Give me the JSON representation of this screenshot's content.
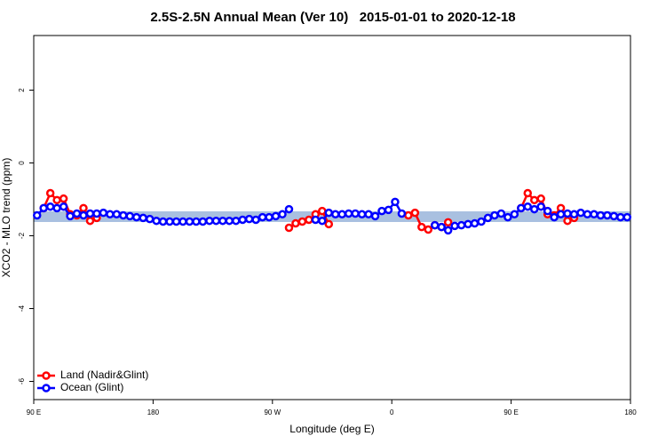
{
  "chart_data": {
    "type": "line",
    "title": "2.5S-2.5N Annual Mean (Ver 10)   2015-01-01 to 2020-12-18",
    "x_label": "Longitude (deg E)",
    "y_label": "XCO2 - MLO trend (ppm)",
    "xlim": [
      90,
      540
    ],
    "ylim": [
      -6.5,
      3.5
    ],
    "xticks": [
      {
        "value": 90,
        "label": "90 E"
      },
      180,
      {
        "value": 270,
        "label": "90 W"
      },
      {
        "value": 360,
        "label": "0"
      },
      {
        "value": 450,
        "label": "90 E"
      },
      {
        "value": 540,
        "label": "180"
      }
    ],
    "yticks": [
      -6,
      -4,
      -2,
      0,
      2
    ],
    "legend": "bottom-left",
    "x": [
      92.5,
      97.5,
      102.5,
      107.5,
      112.5,
      117.5,
      122.5,
      127.5,
      132.5,
      137.5,
      142.5,
      147.5,
      152.5,
      157.5,
      162.5,
      167.5,
      172.5,
      177.5,
      182.5,
      187.5,
      192.5,
      197.5,
      202.5,
      207.5,
      212.5,
      217.5,
      222.5,
      227.5,
      232.5,
      237.5,
      242.5,
      247.5,
      252.5,
      257.5,
      262.5,
      267.5,
      272.5,
      277.5,
      282.5,
      287.5,
      292.5,
      297.5,
      302.5,
      307.5,
      312.5,
      317.5,
      322.5,
      327.5,
      332.5,
      337.5,
      342.5,
      347.5,
      352.5,
      357.5,
      362.5,
      367.5,
      372.5,
      377.5,
      382.5,
      387.5,
      392.5,
      397.5,
      402.5,
      407.5,
      412.5,
      417.5,
      422.5,
      427.5,
      432.5,
      437.5,
      442.5,
      447.5,
      452.5,
      457.5,
      462.5,
      467.5,
      472.5,
      477.5,
      482.5,
      487.5,
      492.5,
      497.5,
      502.5,
      507.5,
      512.5,
      517.5,
      522.5,
      527.5,
      532.5,
      537.5
    ],
    "series": [
      {
        "name": "Land (Nadir&Glint)",
        "color": "#ff0000",
        "values": [
          null,
          -1.24,
          -0.83,
          -1.02,
          -0.98,
          -1.41,
          -1.44,
          -1.24,
          -1.59,
          -1.51,
          null,
          null,
          null,
          null,
          null,
          null,
          null,
          null,
          null,
          null,
          null,
          null,
          null,
          null,
          null,
          null,
          null,
          null,
          null,
          null,
          null,
          null,
          null,
          null,
          null,
          null,
          null,
          null,
          -1.78,
          -1.66,
          -1.61,
          -1.56,
          -1.41,
          -1.32,
          -1.68,
          null,
          null,
          null,
          null,
          null,
          null,
          null,
          null,
          null,
          null,
          null,
          -1.44,
          -1.37,
          -1.76,
          -1.83,
          -1.71,
          -1.76,
          -1.63,
          null,
          null,
          null,
          null,
          null,
          null,
          null,
          null,
          null,
          null,
          -1.24,
          -0.83,
          -1.02,
          -0.98,
          -1.41,
          -1.44,
          -1.24,
          -1.59,
          -1.51,
          null,
          null,
          null,
          null,
          null,
          null,
          null,
          null
        ]
      },
      {
        "name": "Ocean (Glint)",
        "color": "#0000ff",
        "values": [
          -1.44,
          -1.24,
          -1.2,
          -1.24,
          -1.2,
          -1.46,
          -1.39,
          -1.44,
          -1.39,
          -1.39,
          -1.37,
          -1.41,
          -1.41,
          -1.44,
          -1.46,
          -1.49,
          -1.51,
          -1.54,
          -1.59,
          -1.61,
          -1.61,
          -1.61,
          -1.61,
          -1.61,
          -1.61,
          -1.61,
          -1.59,
          -1.59,
          -1.59,
          -1.59,
          -1.59,
          -1.56,
          -1.54,
          -1.56,
          -1.49,
          -1.49,
          -1.46,
          -1.41,
          -1.27,
          null,
          null,
          null,
          -1.56,
          -1.59,
          -1.37,
          -1.41,
          -1.41,
          -1.39,
          -1.39,
          -1.41,
          -1.41,
          -1.46,
          -1.32,
          -1.29,
          -1.07,
          -1.39,
          null,
          null,
          null,
          null,
          -1.71,
          -1.76,
          -1.85,
          -1.73,
          -1.71,
          -1.68,
          -1.66,
          -1.61,
          -1.51,
          -1.44,
          -1.39,
          -1.49,
          -1.41,
          -1.24,
          -1.2,
          -1.27,
          -1.2,
          -1.32,
          -1.49,
          -1.41,
          -1.39,
          -1.41,
          -1.37,
          -1.41,
          -1.41,
          -1.44,
          -1.44,
          -1.46,
          -1.49,
          -1.49
        ]
      }
    ]
  }
}
